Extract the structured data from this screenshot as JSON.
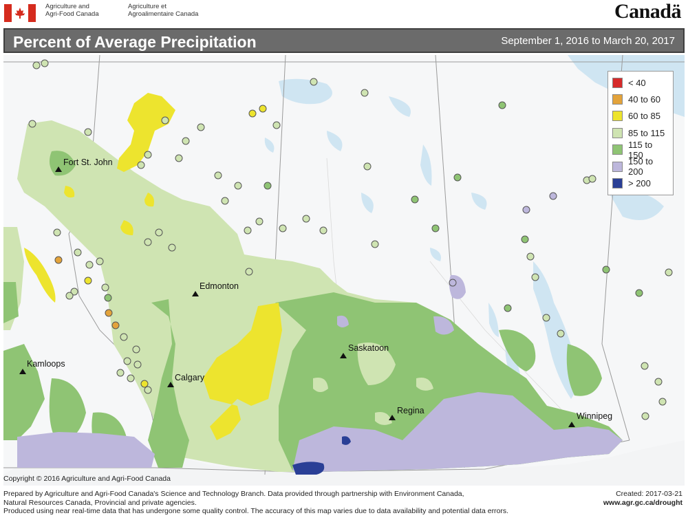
{
  "header": {
    "agency_en_line1": "Agriculture and",
    "agency_en_line2": "Agri-Food Canada",
    "agency_fr_line1": "Agriculture et",
    "agency_fr_line2": "Agroalimentaire Canada",
    "wordmark": "Canadä"
  },
  "title_bar": {
    "title": "Percent of Average Precipitation",
    "date_range": "September 1, 2016 to March 20, 2017"
  },
  "legend": {
    "items": [
      {
        "label": "< 40",
        "color": "#d62a2a"
      },
      {
        "label": "40 to 60",
        "color": "#e3a33b"
      },
      {
        "label": "60 to 85",
        "color": "#ede42e"
      },
      {
        "label": "85 to 115",
        "color": "#cfe4b2"
      },
      {
        "label": "115 to 150",
        "color": "#8fc474"
      },
      {
        "label": "150 to 200",
        "color": "#bdb7dc"
      },
      {
        "label": "> 200",
        "color": "#2a3f96"
      }
    ]
  },
  "cities": {
    "fort_st_john": "Fort St. John",
    "edmonton": "Edmonton",
    "kamloops": "Kamloops",
    "calgary": "Calgary",
    "saskatoon": "Saskatoon",
    "regina": "Regina",
    "winnipeg": "Winnipeg"
  },
  "colors": {
    "lt40": "#d62a2a",
    "c40_60": "#e3a33b",
    "c60_85": "#ede42e",
    "c85_115": "#cfe4b2",
    "c115_150": "#8fc474",
    "c150_200": "#bdb7dc",
    "gt200": "#2a3f96",
    "water": "#cfe5f2",
    "land": "#f6f7f8"
  },
  "copyright": "Copyright © 2016 Agriculture and Agri-Food Canada",
  "footer": {
    "line1": "Prepared by Agriculture and Agri-Food Canada's Science and Technology Branch. Data provided through partnership with Environment Canada,",
    "line2": "Natural Resources Canada, Provincial and private agencies.",
    "line3": "Produced using near real-time data that has undergone some quality control. The accuracy of this map varies due to data availability and potential data errors.",
    "created": "Created: 2017-03-21",
    "url": "www.agr.gc.ca/drought"
  }
}
